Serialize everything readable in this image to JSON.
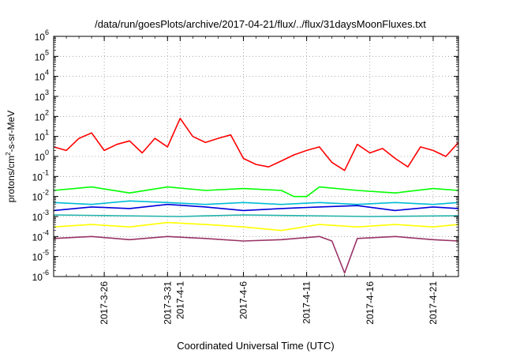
{
  "chart_data": {
    "type": "line",
    "title": "/data/run/goesPlots/archive/2017-04-21/flux/../flux/31daysMoonFluxes.txt",
    "xlabel": "Coordinated Universal Time (UTC)",
    "ylabel": {
      "pre": "protons/cm",
      "sup": "2",
      "post": "-s-sr-MeV"
    },
    "yscale": "log",
    "ylim": [
      1e-06,
      1000000.0
    ],
    "xlim": [
      "2017-03-22",
      "2017-04-23"
    ],
    "grid": true,
    "x_ticks": [
      {
        "date": "2017-03-26",
        "lines": [
          "2017-3-26"
        ]
      },
      {
        "date": "2017-03-31",
        "lines": [
          "2017-3-31"
        ]
      },
      {
        "date": "2017-04-01",
        "lines": [
          "2017-4-1"
        ]
      },
      {
        "date": "2017-04-06",
        "lines": [
          "2017-4-6"
        ]
      },
      {
        "date": "2017-04-11",
        "lines": [
          "2017-4-11"
        ]
      },
      {
        "date": "2017-04-16",
        "lines": [
          "2017-4-16"
        ]
      },
      {
        "date": "2017-04-21",
        "lines": [
          "2017-4-21"
        ]
      }
    ],
    "y_ticks": [
      {
        "base": "10",
        "exp": "-6"
      },
      {
        "base": "10",
        "exp": "-5"
      },
      {
        "base": "10",
        "exp": "-4"
      },
      {
        "base": "10",
        "exp": "-3"
      },
      {
        "base": "10",
        "exp": "-2"
      },
      {
        "base": "10",
        "exp": "-1"
      },
      {
        "base": "10",
        "exp": "0"
      },
      {
        "base": "10",
        "exp": "1"
      },
      {
        "base": "10",
        "exp": "2"
      },
      {
        "base": "10",
        "exp": "3"
      },
      {
        "base": "10",
        "exp": "4"
      },
      {
        "base": "10",
        "exp": "5"
      },
      {
        "base": "10",
        "exp": "6"
      }
    ],
    "series": [
      {
        "color": "#ff0000",
        "x": [
          "2017-03-22",
          "2017-03-23",
          "2017-03-24",
          "2017-03-25",
          "2017-03-26",
          "2017-03-27",
          "2017-03-28",
          "2017-03-29",
          "2017-03-30",
          "2017-03-31",
          "2017-04-01",
          "2017-04-02",
          "2017-04-03",
          "2017-04-04",
          "2017-04-05",
          "2017-04-06",
          "2017-04-07",
          "2017-04-08",
          "2017-04-09",
          "2017-04-10",
          "2017-04-11",
          "2017-04-12",
          "2017-04-13",
          "2017-04-14",
          "2017-04-15",
          "2017-04-16",
          "2017-04-17",
          "2017-04-18",
          "2017-04-19",
          "2017-04-20",
          "2017-04-21",
          "2017-04-22",
          "2017-04-23"
        ],
        "values": [
          3,
          2,
          8,
          15,
          2,
          4,
          6,
          1.5,
          8,
          3,
          80,
          10,
          5,
          8,
          12,
          0.8,
          0.4,
          0.3,
          0.6,
          1.2,
          2,
          3,
          0.5,
          0.2,
          4,
          1.5,
          2.5,
          0.8,
          0.3,
          3,
          2,
          1,
          5
        ]
      },
      {
        "color": "#00ff00",
        "x": [
          "2017-03-22",
          "2017-03-25",
          "2017-03-28",
          "2017-03-31",
          "2017-04-03",
          "2017-04-06",
          "2017-04-09",
          "2017-04-10",
          "2017-04-11",
          "2017-04-12",
          "2017-04-15",
          "2017-04-18",
          "2017-04-21",
          "2017-04-23"
        ],
        "values": [
          0.02,
          0.03,
          0.015,
          0.03,
          0.02,
          0.025,
          0.02,
          0.01,
          0.01,
          0.03,
          0.02,
          0.015,
          0.025,
          0.02
        ]
      },
      {
        "color": "#00bcd4",
        "x": [
          "2017-03-22",
          "2017-03-25",
          "2017-03-28",
          "2017-03-31",
          "2017-04-03",
          "2017-04-06",
          "2017-04-09",
          "2017-04-12",
          "2017-04-15",
          "2017-04-18",
          "2017-04-21",
          "2017-04-23"
        ],
        "values": [
          0.005,
          0.004,
          0.006,
          0.005,
          0.004,
          0.005,
          0.004,
          0.005,
          0.004,
          0.005,
          0.004,
          0.005
        ]
      },
      {
        "color": "#0000dd",
        "x": [
          "2017-03-22",
          "2017-03-25",
          "2017-03-28",
          "2017-03-31",
          "2017-04-03",
          "2017-04-06",
          "2017-04-09",
          "2017-04-12",
          "2017-04-15",
          "2017-04-18",
          "2017-04-21",
          "2017-04-23"
        ],
        "values": [
          0.002,
          0.003,
          0.0025,
          0.004,
          0.003,
          0.002,
          0.0025,
          0.003,
          0.0035,
          0.002,
          0.003,
          0.0025
        ]
      },
      {
        "color": "#20b2aa",
        "x": [
          "2017-03-22",
          "2017-03-27",
          "2017-04-01",
          "2017-04-06",
          "2017-04-11",
          "2017-04-16",
          "2017-04-23"
        ],
        "values": [
          0.0012,
          0.0011,
          0.001,
          0.0012,
          0.0011,
          0.001,
          0.0011
        ]
      },
      {
        "color": "#ffff00",
        "x": [
          "2017-03-22",
          "2017-03-25",
          "2017-03-28",
          "2017-03-31",
          "2017-04-03",
          "2017-04-06",
          "2017-04-09",
          "2017-04-12",
          "2017-04-15",
          "2017-04-18",
          "2017-04-21",
          "2017-04-23"
        ],
        "values": [
          0.0003,
          0.0004,
          0.0003,
          0.0005,
          0.0004,
          0.0003,
          0.0002,
          0.0004,
          0.0003,
          0.0004,
          0.0003,
          0.0004
        ]
      },
      {
        "color": "#993366",
        "x": [
          "2017-03-22",
          "2017-03-25",
          "2017-03-28",
          "2017-03-31",
          "2017-04-03",
          "2017-04-06",
          "2017-04-09",
          "2017-04-12",
          "2017-04-13",
          "2017-04-14",
          "2017-04-15",
          "2017-04-18",
          "2017-04-21",
          "2017-04-23"
        ],
        "values": [
          8e-05,
          0.0001,
          7e-05,
          0.0001,
          8e-05,
          6e-05,
          7e-05,
          0.0001,
          6e-05,
          1.5e-06,
          8e-05,
          0.0001,
          7e-05,
          6e-05
        ]
      }
    ]
  }
}
